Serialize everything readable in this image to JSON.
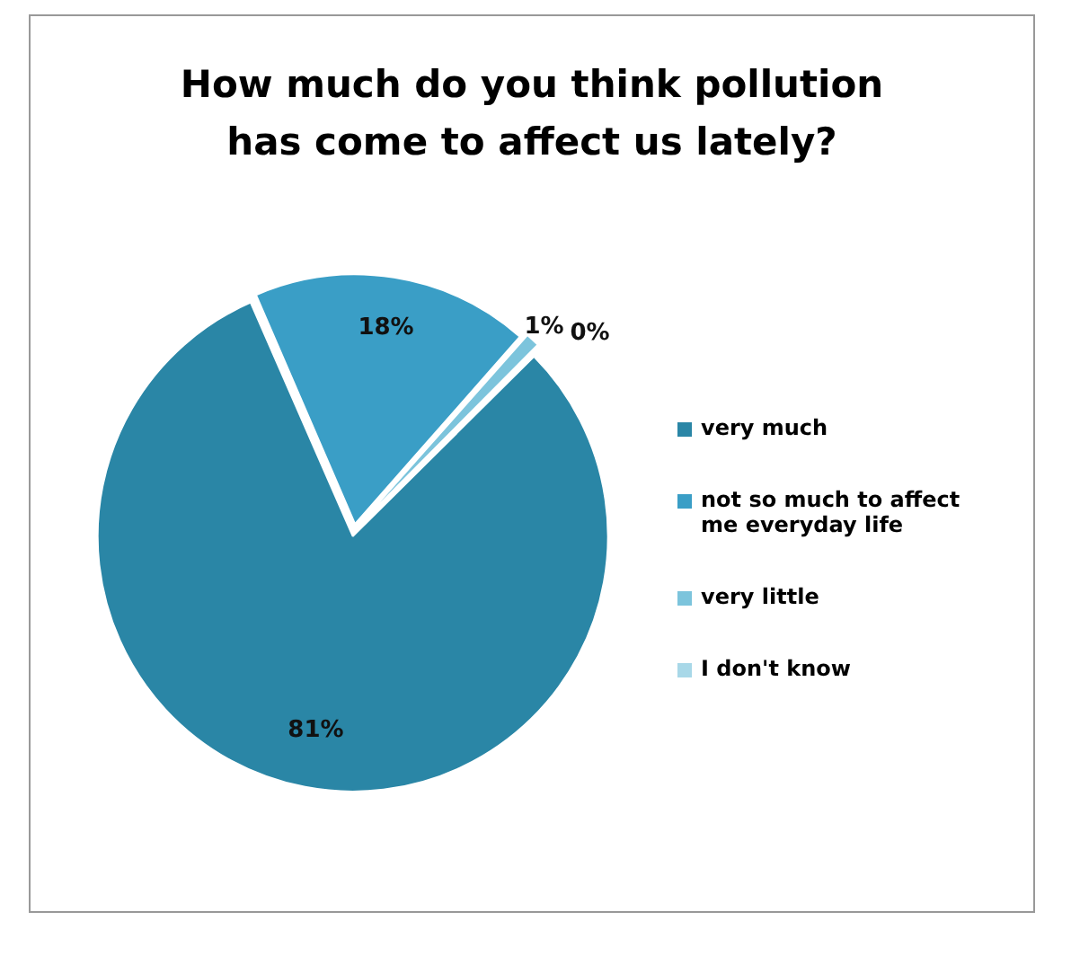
{
  "chart_data": {
    "type": "pie",
    "title": "How much do you think pollution has come to affect us lately?",
    "categories": [
      "very much",
      "not so much to affect me everyday life",
      "very little",
      "I don't know"
    ],
    "values": [
      81,
      18,
      1,
      0
    ],
    "colors": [
      "#2a86a6",
      "#3a9ec6",
      "#7cc4dc",
      "#a8d8e8"
    ],
    "value_labels": [
      "81%",
      "18%",
      "1%",
      "0%"
    ],
    "legend": "right"
  }
}
